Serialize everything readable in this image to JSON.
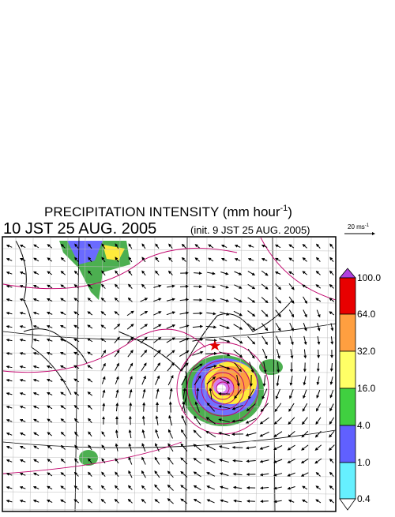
{
  "header": {
    "title": "PRECIPITATION INTENSITY (mm hour",
    "title_superscript": "-1",
    "title_end": ")",
    "time": "10 JST 25 AUG. 2005",
    "init": "(init. 9 JST 25 AUG. 2005)"
  },
  "wind_scale": {
    "label": "20 ms",
    "superscript": "-1"
  },
  "colorbar": {
    "labels": [
      "100.0",
      "64.0",
      "32.0",
      "16.0",
      "4.0",
      "1.0",
      "0.4"
    ]
  }
}
